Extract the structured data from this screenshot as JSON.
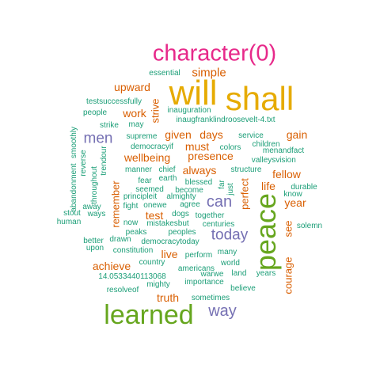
{
  "words": [
    {
      "text": "character(0)",
      "group": 4
    },
    {
      "text": "will",
      "group": 6
    },
    {
      "text": "shall",
      "group": 6
    },
    {
      "text": "peace",
      "group": 5
    },
    {
      "text": "learned",
      "group": 5
    },
    {
      "text": "men",
      "group": 3
    },
    {
      "text": "can",
      "group": 3
    },
    {
      "text": "today",
      "group": 3
    },
    {
      "text": "way",
      "group": 3
    },
    {
      "text": "simple",
      "group": 2
    },
    {
      "text": "upward",
      "group": 2
    },
    {
      "text": "work",
      "group": 2
    },
    {
      "text": "strive",
      "group": 2
    },
    {
      "text": "days",
      "group": 2
    },
    {
      "text": "given",
      "group": 2
    },
    {
      "text": "gain",
      "group": 2
    },
    {
      "text": "must",
      "group": 2
    },
    {
      "text": "wellbeing",
      "group": 2
    },
    {
      "text": "presence",
      "group": 2
    },
    {
      "text": "always",
      "group": 2
    },
    {
      "text": "fellow",
      "group": 2
    },
    {
      "text": "life",
      "group": 2
    },
    {
      "text": "perfect",
      "group": 2
    },
    {
      "text": "year",
      "group": 2
    },
    {
      "text": "remember",
      "group": 2
    },
    {
      "text": "test",
      "group": 2
    },
    {
      "text": "see",
      "group": 2
    },
    {
      "text": "achieve",
      "group": 2
    },
    {
      "text": "live",
      "group": 2
    },
    {
      "text": "courage",
      "group": 2
    },
    {
      "text": "truth",
      "group": 2
    },
    {
      "text": "essential",
      "group": 1
    },
    {
      "text": "inauguration",
      "group": 1
    },
    {
      "text": "inaugfranklindroosevelt-4.txt",
      "group": 1
    },
    {
      "text": "testsuccessfully",
      "group": 1
    },
    {
      "text": "people",
      "group": 1
    },
    {
      "text": "strike",
      "group": 1
    },
    {
      "text": "may",
      "group": 1
    },
    {
      "text": "supreme",
      "group": 1
    },
    {
      "text": "democracyif",
      "group": 1
    },
    {
      "text": "service",
      "group": 1
    },
    {
      "text": "children",
      "group": 1
    },
    {
      "text": "menandfact",
      "group": 1
    },
    {
      "text": "valleys",
      "group": 1
    },
    {
      "text": "vision",
      "group": 1
    },
    {
      "text": "colors",
      "group": 1
    },
    {
      "text": "smoothly",
      "group": 1
    },
    {
      "text": "reverse",
      "group": 1
    },
    {
      "text": "trendour",
      "group": 1
    },
    {
      "text": "abandonment",
      "group": 1
    },
    {
      "text": "throughout",
      "group": 1
    },
    {
      "text": "manner",
      "group": 1
    },
    {
      "text": "chief",
      "group": 1
    },
    {
      "text": "earth",
      "group": 1
    },
    {
      "text": "fear",
      "group": 1
    },
    {
      "text": "blessed",
      "group": 1
    },
    {
      "text": "seemed",
      "group": 1
    },
    {
      "text": "become",
      "group": 1
    },
    {
      "text": "principleit",
      "group": 1
    },
    {
      "text": "almighty",
      "group": 1
    },
    {
      "text": "fight",
      "group": 1
    },
    {
      "text": "onewe",
      "group": 1
    },
    {
      "text": "agree",
      "group": 1
    },
    {
      "text": "far",
      "group": 1
    },
    {
      "text": "just",
      "group": 1
    },
    {
      "text": "structure",
      "group": 1
    },
    {
      "text": "durable",
      "group": 1
    },
    {
      "text": "know",
      "group": 1
    },
    {
      "text": "away",
      "group": 1
    },
    {
      "text": "stout",
      "group": 1
    },
    {
      "text": "ways",
      "group": 1
    },
    {
      "text": "human",
      "group": 1
    },
    {
      "text": "now",
      "group": 1
    },
    {
      "text": "dogs",
      "group": 1
    },
    {
      "text": "together",
      "group": 1
    },
    {
      "text": "mistakesbut",
      "group": 1
    },
    {
      "text": "centuries",
      "group": 1
    },
    {
      "text": "peaks",
      "group": 1
    },
    {
      "text": "peoples",
      "group": 1
    },
    {
      "text": "better",
      "group": 1
    },
    {
      "text": "drawn",
      "group": 1
    },
    {
      "text": "democracytoday",
      "group": 1
    },
    {
      "text": "solemn",
      "group": 1
    },
    {
      "text": "upon",
      "group": 1
    },
    {
      "text": "constitution",
      "group": 1
    },
    {
      "text": "perform",
      "group": 1
    },
    {
      "text": "many",
      "group": 1
    },
    {
      "text": "country",
      "group": 1
    },
    {
      "text": "world",
      "group": 1
    },
    {
      "text": "americans",
      "group": 1
    },
    {
      "text": "14.0533440113068",
      "group": 1
    },
    {
      "text": "warwe",
      "group": 1
    },
    {
      "text": "land",
      "group": 1
    },
    {
      "text": "years",
      "group": 1
    },
    {
      "text": "mighty",
      "group": 1
    },
    {
      "text": "importance",
      "group": 1
    },
    {
      "text": "believe",
      "group": 1
    },
    {
      "text": "resolveof",
      "group": 1
    },
    {
      "text": "sometimes",
      "group": 1
    }
  ]
}
